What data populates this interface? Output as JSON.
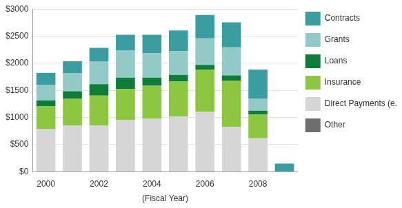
{
  "chart_data": {
    "type": "bar",
    "stacked": true,
    "x_label": "(Fiscal Year)",
    "categories": [
      "2000",
      null,
      "2002",
      null,
      "2004",
      null,
      "2006",
      null,
      "2008",
      null
    ],
    "ylim": [
      0,
      3000
    ],
    "yticks": [
      {
        "value": 0,
        "label": "$0"
      },
      {
        "value": 500,
        "label": "$500"
      },
      {
        "value": 1000,
        "label": "$1000"
      },
      {
        "value": 1500,
        "label": "$1500"
      },
      {
        "value": 2000,
        "label": "$2000"
      },
      {
        "value": 2500,
        "label": "$2500"
      },
      {
        "value": 3000,
        "label": "$3000"
      }
    ],
    "grid": true,
    "legend": "right",
    "series": [
      {
        "name": "Contracts",
        "color": "#3a9da0",
        "values": [
          220,
          220,
          250,
          290,
          340,
          380,
          430,
          460,
          540,
          150
        ]
      },
      {
        "name": "Grants",
        "color": "#93c9c7",
        "values": [
          290,
          330,
          420,
          500,
          450,
          440,
          490,
          520,
          220,
          0
        ]
      },
      {
        "name": "Loans",
        "color": "#0f7d3a",
        "values": [
          110,
          140,
          210,
          210,
          150,
          120,
          90,
          100,
          70,
          0
        ]
      },
      {
        "name": "Insurance",
        "color": "#8dc641",
        "values": [
          420,
          490,
          550,
          570,
          610,
          650,
          770,
          850,
          440,
          0
        ]
      },
      {
        "name": "Direct Payments (e.g. Social Security)",
        "color": "#d6d6d6",
        "values": [
          780,
          850,
          850,
          950,
          970,
          1010,
          1100,
          820,
          610,
          0
        ]
      },
      {
        "name": "Other",
        "color": "#6e6e6e",
        "values": [
          5,
          5,
          5,
          5,
          5,
          5,
          10,
          5,
          5,
          0
        ]
      }
    ]
  }
}
